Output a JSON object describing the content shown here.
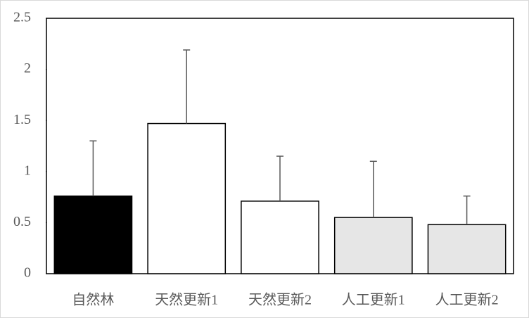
{
  "chart_data": {
    "type": "bar",
    "categories": [
      "自然林",
      "天然更新1",
      "天然更新2",
      "人工更新1",
      "人工更新2"
    ],
    "values": [
      0.76,
      1.47,
      0.71,
      0.55,
      0.48
    ],
    "errors": [
      0.54,
      0.72,
      0.44,
      0.55,
      0.28
    ],
    "colors": [
      "#000000",
      "#ffffff",
      "#ffffff",
      "#e6e6e6",
      "#e6e6e6"
    ],
    "ylim": [
      0,
      2.5
    ],
    "yticks": [
      0,
      0.5,
      1,
      1.5,
      2,
      2.5
    ],
    "grid": false
  }
}
